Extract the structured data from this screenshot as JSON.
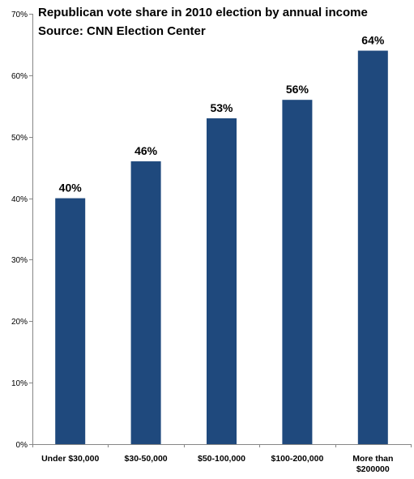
{
  "chart_data": {
    "type": "bar",
    "title": "Republican vote share in 2010 election by annual income",
    "subtitle": "Source: CNN Election Center",
    "categories": [
      [
        "Under $30,000"
      ],
      [
        "$30-50,000"
      ],
      [
        "$50-100,000"
      ],
      [
        "$100-200,000"
      ],
      [
        "More than",
        "$200000"
      ]
    ],
    "values": [
      40,
      46,
      53,
      56,
      64
    ],
    "data_labels": [
      "40%",
      "46%",
      "53%",
      "56%",
      "64%"
    ],
    "y_ticks": [
      0,
      10,
      20,
      30,
      40,
      50,
      60,
      70
    ],
    "y_tick_labels": [
      "0%",
      "10%",
      "20%",
      "30%",
      "40%",
      "50%",
      "60%",
      "70%"
    ],
    "ylim": [
      0,
      70
    ],
    "xlabel": "",
    "ylabel": "",
    "grid": false,
    "legend": "none",
    "bar_color": "#1F497D"
  }
}
